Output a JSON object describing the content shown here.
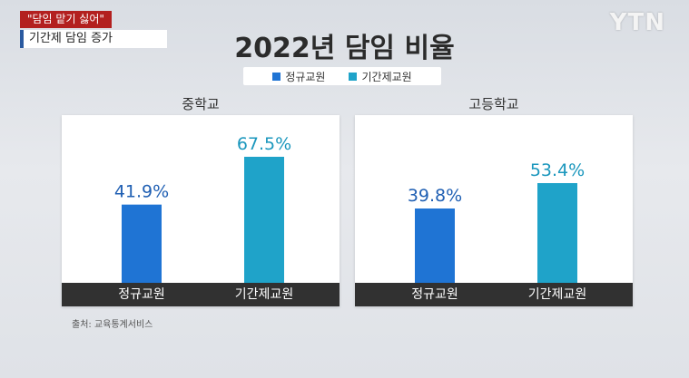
{
  "banner": {
    "quote": "\"담임 맡기 싫어\"",
    "subtitle": "기간제 담임 증가"
  },
  "logo": "YTN",
  "colors": {
    "regular": "#1f74d4",
    "contract": "#1fa3c9",
    "value_regular": "#1f5fb3",
    "value_contract": "#1b97bd"
  },
  "chart_data": [
    {
      "type": "bar",
      "title": "2022년 담임 비율",
      "subtitle": "중학교",
      "categories": [
        "정규교원",
        "기간제교원"
      ],
      "values": [
        41.9,
        67.5
      ],
      "value_labels": [
        "41.9%",
        "67.5%"
      ],
      "unit": "%",
      "legend": [
        "정규교원",
        "기간제교원"
      ],
      "legend_position": "top-center",
      "ylim": [
        0,
        100
      ],
      "grid": false
    },
    {
      "type": "bar",
      "title": "2022년 담임 비율",
      "subtitle": "고등학교",
      "categories": [
        "정규교원",
        "기간제교원"
      ],
      "values": [
        39.8,
        53.4
      ],
      "value_labels": [
        "39.8%",
        "53.4%"
      ],
      "unit": "%",
      "legend": [
        "정규교원",
        "기간제교원"
      ],
      "legend_position": "top-center",
      "ylim": [
        0,
        100
      ],
      "grid": false
    }
  ],
  "source": "출처: 교육통계서비스"
}
